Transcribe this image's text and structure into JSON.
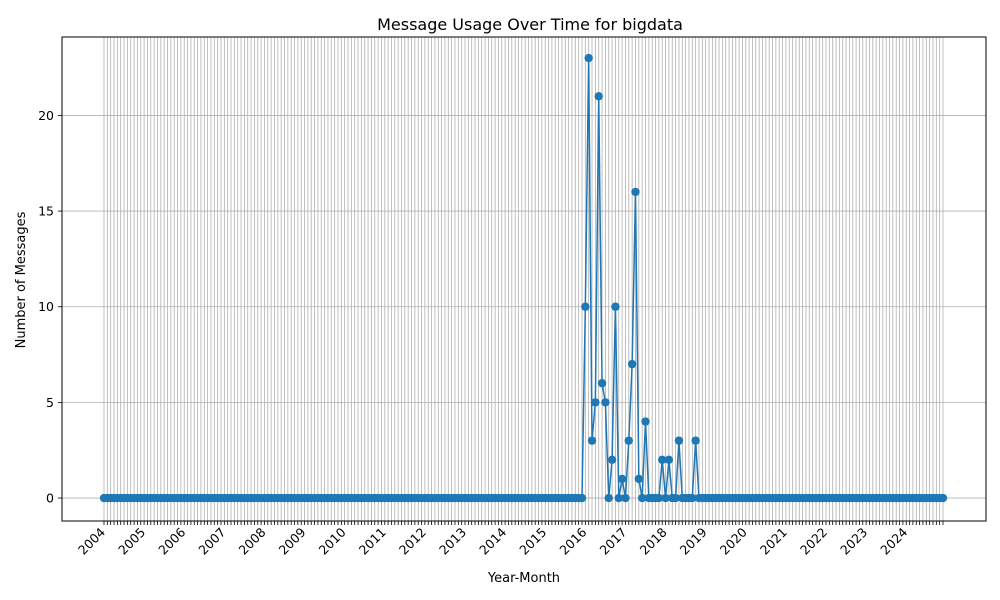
{
  "chart_data": {
    "type": "line",
    "title": "Message Usage Over Time for bigdata",
    "xlabel": "Year-Month",
    "ylabel": "Number of Messages",
    "x_start": "2004-01",
    "x_end": "2024-12",
    "ylim": [
      -1.2,
      24.1
    ],
    "y_ticks": [
      0,
      5,
      10,
      15,
      20
    ],
    "x_tick_labels": [
      "2004",
      "2005",
      "2006",
      "2007",
      "2008",
      "2009",
      "2010",
      "2011",
      "2012",
      "2013",
      "2014",
      "2015",
      "2016",
      "2017",
      "2018",
      "2019",
      "2020",
      "2021",
      "2022",
      "2023",
      "2024"
    ],
    "grid": true,
    "line_color": "#1f77b4",
    "default_value": 0,
    "points": [
      {
        "x": "2016-01",
        "y": 10
      },
      {
        "x": "2016-02",
        "y": 23
      },
      {
        "x": "2016-03",
        "y": 3
      },
      {
        "x": "2016-04",
        "y": 5
      },
      {
        "x": "2016-05",
        "y": 21
      },
      {
        "x": "2016-06",
        "y": 6
      },
      {
        "x": "2016-07",
        "y": 5
      },
      {
        "x": "2016-08",
        "y": 0
      },
      {
        "x": "2016-09",
        "y": 2
      },
      {
        "x": "2016-10",
        "y": 10
      },
      {
        "x": "2016-11",
        "y": 0
      },
      {
        "x": "2016-12",
        "y": 1
      },
      {
        "x": "2017-01",
        "y": 0
      },
      {
        "x": "2017-02",
        "y": 3
      },
      {
        "x": "2017-03",
        "y": 7
      },
      {
        "x": "2017-04",
        "y": 16
      },
      {
        "x": "2017-05",
        "y": 1
      },
      {
        "x": "2017-06",
        "y": 0
      },
      {
        "x": "2017-07",
        "y": 4
      },
      {
        "x": "2017-08",
        "y": 0
      },
      {
        "x": "2017-09",
        "y": 0
      },
      {
        "x": "2017-10",
        "y": 0
      },
      {
        "x": "2017-11",
        "y": 0
      },
      {
        "x": "2017-12",
        "y": 2
      },
      {
        "x": "2018-01",
        "y": 0
      },
      {
        "x": "2018-02",
        "y": 2
      },
      {
        "x": "2018-03",
        "y": 0
      },
      {
        "x": "2018-04",
        "y": 0
      },
      {
        "x": "2018-05",
        "y": 3
      },
      {
        "x": "2018-06",
        "y": 0
      },
      {
        "x": "2018-07",
        "y": 0
      },
      {
        "x": "2018-08",
        "y": 0
      },
      {
        "x": "2018-09",
        "y": 0
      },
      {
        "x": "2018-10",
        "y": 3
      },
      {
        "x": "2018-11",
        "y": 0
      }
    ]
  }
}
